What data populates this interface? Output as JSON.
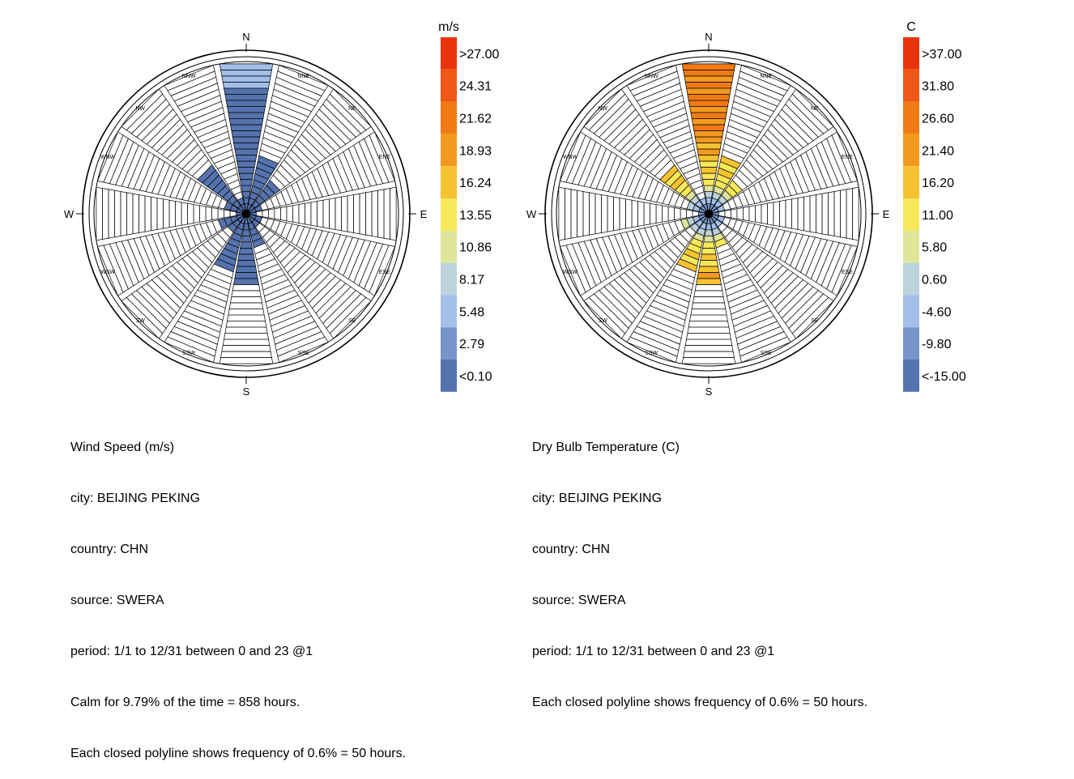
{
  "chart_data": [
    {
      "type": "windrose",
      "title": "Wind Speed (m/s)",
      "variable": "wind_speed",
      "unit_label": "m/s",
      "direction_labels": [
        "N",
        "NNE",
        "NE",
        "ENE",
        "E",
        "ESE",
        "SE",
        "SSE",
        "S",
        "SSW",
        "SW",
        "WSW",
        "W",
        "WNW",
        "NW",
        "NNW"
      ],
      "cardinal_labels": [
        "N",
        "E",
        "S",
        "W"
      ],
      "frequency_rings_count": 24,
      "ring_frequency_percent": 0.6,
      "ring_hours": 50,
      "sector_frequency_rings": [
        24,
        9,
        6,
        2,
        1,
        2,
        2,
        5,
        11,
        9,
        3,
        4,
        1,
        3,
        9,
        2
      ],
      "legend_bins": [
        ">27.00",
        "24.31",
        "21.62",
        "18.93",
        "16.24",
        "13.55",
        "10.86",
        "8.17",
        "5.48",
        "2.79",
        "<0.10"
      ],
      "legend_colors": [
        "#e8340c",
        "#ee5716",
        "#f07a14",
        "#f39a1e",
        "#f6c232",
        "#f7e859",
        "#dfe69a",
        "#bcd2dc",
        "#a3bfe9",
        "#7895cb",
        "#5573ae"
      ],
      "sector_fill": "#5573ae",
      "caption_lines": [
        "Wind Speed (m/s)",
        "city: BEIJING PEKING",
        "country: CHN",
        "source: SWERA",
        "period: 1/1 to 12/31 between 0 and 23 @1",
        "Calm for 9.79% of the time = 858 hours.",
        "Each closed polyline shows frequency of 0.6% = 50 hours."
      ]
    },
    {
      "type": "windrose",
      "title": "Dry Bulb Temperature (C)",
      "variable": "dry_bulb_temperature",
      "unit_label": "C",
      "direction_labels": [
        "N",
        "NNE",
        "NE",
        "ENE",
        "E",
        "ESE",
        "SE",
        "SSE",
        "S",
        "SSW",
        "SW",
        "WSW",
        "W",
        "WNW",
        "NW",
        "NNW"
      ],
      "cardinal_labels": [
        "N",
        "E",
        "S",
        "W"
      ],
      "frequency_rings_count": 24,
      "ring_frequency_percent": 0.6,
      "ring_hours": 50,
      "sector_frequency_rings": [
        24,
        9,
        6,
        2,
        1,
        2,
        2,
        5,
        11,
        9,
        3,
        4,
        1,
        3,
        9,
        2
      ],
      "legend_bins": [
        ">37.00",
        "31.80",
        "26.60",
        "21.40",
        "16.20",
        "11.00",
        "5.80",
        "0.60",
        "-4.60",
        "-9.80",
        "<-15.00"
      ],
      "legend_colors": [
        "#e8340c",
        "#ee5716",
        "#f07a14",
        "#f39a1e",
        "#f6c232",
        "#f7e859",
        "#dfe69a",
        "#bcd2dc",
        "#a3bfe9",
        "#7895cb",
        "#5573ae"
      ],
      "caption_lines": [
        "Dry Bulb Temperature (C)",
        "city: BEIJING PEKING",
        "country: CHN",
        "source: SWERA",
        "period: 1/1 to 12/31 between 0 and 23 @1",
        "Each closed polyline shows frequency of 0.6% = 50 hours."
      ]
    }
  ]
}
